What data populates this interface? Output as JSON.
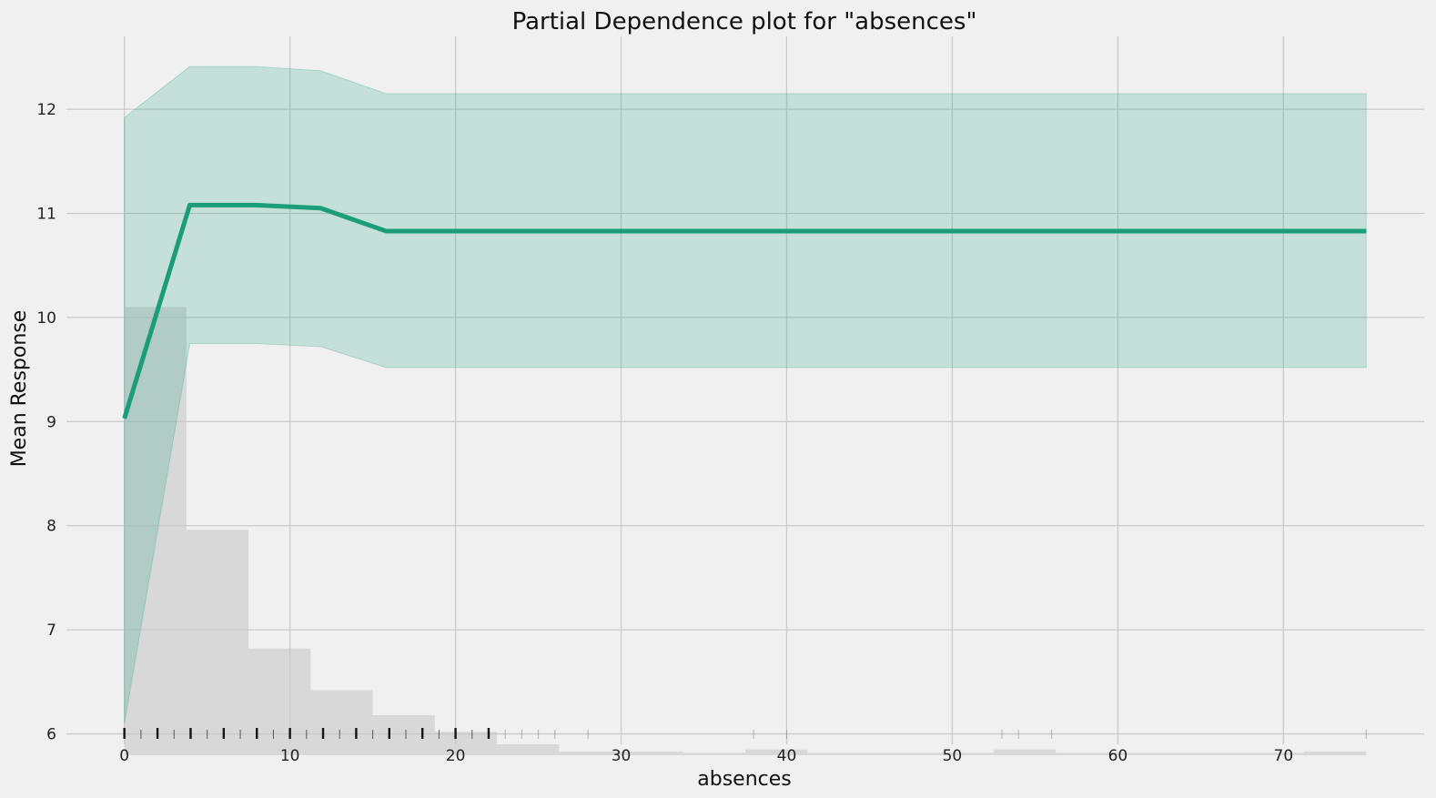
{
  "chart_data": {
    "type": "line",
    "title": "Partial Dependence plot for \"absences\"",
    "xlabel": "absences",
    "ylabel": "Mean Response",
    "xlim": [
      -3.5,
      78.5
    ],
    "ylim": [
      5.9,
      12.7
    ],
    "x_ticks": [
      "0",
      "10",
      "20",
      "30",
      "40",
      "50",
      "60",
      "70"
    ],
    "y_ticks": [
      "6",
      "7",
      "8",
      "9",
      "10",
      "11",
      "12"
    ],
    "grid": true,
    "series": [
      {
        "x": [
          0,
          3.95,
          7.9,
          11.85,
          15.8,
          75
        ],
        "values": [
          9.03,
          11.08,
          11.08,
          11.05,
          10.83,
          10.83
        ],
        "lower": [
          6.1,
          9.75,
          9.75,
          9.72,
          9.52,
          9.52
        ],
        "upper": [
          11.92,
          12.41,
          12.41,
          12.37,
          12.15,
          12.15
        ],
        "color": "#1b9e77"
      }
    ],
    "histogram": {
      "bin_edges": [
        0,
        3.75,
        7.5,
        11.25,
        15,
        18.75,
        22.5,
        26.25,
        30,
        33.75,
        37.5,
        41.25,
        45,
        48.75,
        52.5,
        56.25,
        60,
        63.75,
        67.5,
        71.25,
        75
      ],
      "heights": [
        10.1,
        7.96,
        6.82,
        6.42,
        6.18,
        6.02,
        5.9,
        5.83,
        5.83,
        5.82,
        5.85,
        5.82,
        5.82,
        5.82,
        5.85,
        5.82,
        5.82,
        5.82,
        5.82,
        5.83
      ],
      "color": "#c8c8c8"
    },
    "rug": [
      0,
      1,
      2,
      3,
      4,
      5,
      6,
      7,
      8,
      9,
      10,
      11,
      12,
      13,
      14,
      15,
      16,
      17,
      18,
      19,
      20,
      21,
      22,
      23,
      24,
      25,
      26,
      28,
      38,
      40,
      53,
      54,
      56,
      75
    ]
  }
}
